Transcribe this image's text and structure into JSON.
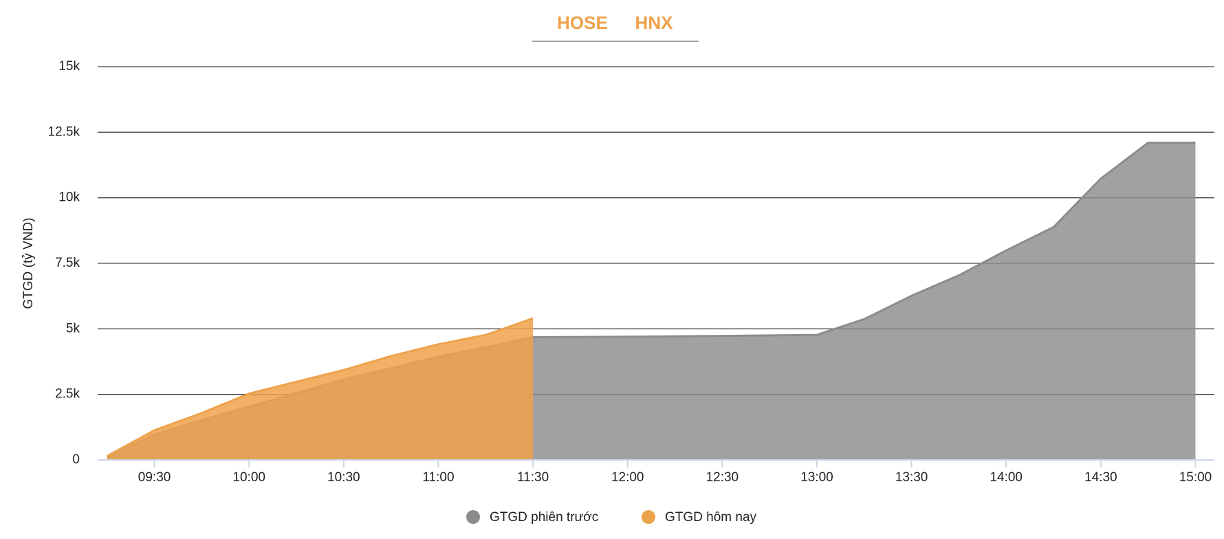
{
  "tabs": [
    "HOSE",
    "HNX"
  ],
  "chart_data": {
    "type": "area",
    "y_label": "GTGD (tỷ VND)",
    "x": [
      "09:15",
      "09:30",
      "09:45",
      "10:00",
      "10:15",
      "10:30",
      "10:45",
      "11:00",
      "11:15",
      "11:30",
      "12:00",
      "12:30",
      "13:00",
      "13:15",
      "13:30",
      "13:45",
      "14:00",
      "14:15",
      "14:30",
      "14:45",
      "15:00"
    ],
    "series": [
      {
        "name": "GTGD phiên trước",
        "color": "#8c8c8e",
        "values": [
          100,
          980,
          1520,
          2030,
          2550,
          3070,
          3500,
          3940,
          4300,
          4680,
          4700,
          4730,
          4770,
          5370,
          6260,
          7040,
          7990,
          8880,
          10730,
          12100,
          12100
        ]
      },
      {
        "name": "GTGD hôm nay",
        "color": "#eea24a",
        "values": [
          150,
          1130,
          1790,
          2530,
          2980,
          3430,
          3960,
          4410,
          4770,
          5400,
          null,
          null,
          null,
          null,
          null,
          null,
          null,
          null,
          null,
          null,
          null
        ]
      }
    ],
    "xlim": [
      "09:12",
      "15:06"
    ],
    "xticks": [
      "09:30",
      "10:00",
      "10:30",
      "11:00",
      "11:30",
      "12:00",
      "12:30",
      "13:00",
      "13:30",
      "14:00",
      "14:30",
      "15:00"
    ],
    "ylim": [
      0,
      15000
    ],
    "yticks": [
      0,
      {
        "value": 2500,
        "label": "2.5k"
      },
      {
        "value": 5000,
        "label": "5k"
      },
      {
        "value": 7500,
        "label": "7.5k"
      },
      {
        "value": 10000,
        "label": "10k"
      },
      {
        "value": 12500,
        "label": "12.5k"
      },
      {
        "value": 15000,
        "label": "15k"
      }
    ],
    "grid": true,
    "legend": "bottom"
  }
}
